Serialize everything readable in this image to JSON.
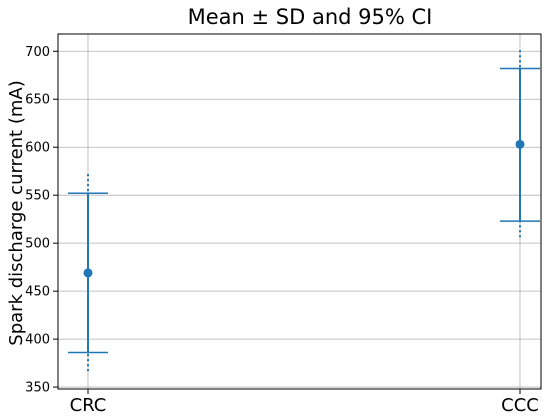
{
  "chart_data": {
    "type": "scatter",
    "title": "Mean ± SD and 95% CI",
    "xlabel": "",
    "ylabel": "Spark discharge current (mA)",
    "categories": [
      "CRC",
      "CCC"
    ],
    "ylim": [
      348,
      718
    ],
    "yticks": [
      350,
      400,
      450,
      500,
      550,
      600,
      650,
      700
    ],
    "grid": true,
    "legend": "none",
    "series": [
      {
        "color": "#1f77b4",
        "points": [
          {
            "category": "CRC",
            "mean": 469,
            "sd_low": 386,
            "sd_high": 552,
            "ci_low": 366,
            "ci_high": 572
          },
          {
            "category": "CCC",
            "mean": 603,
            "sd_low": 523,
            "sd_high": 682,
            "ci_low": 505,
            "ci_high": 701
          }
        ]
      }
    ]
  }
}
